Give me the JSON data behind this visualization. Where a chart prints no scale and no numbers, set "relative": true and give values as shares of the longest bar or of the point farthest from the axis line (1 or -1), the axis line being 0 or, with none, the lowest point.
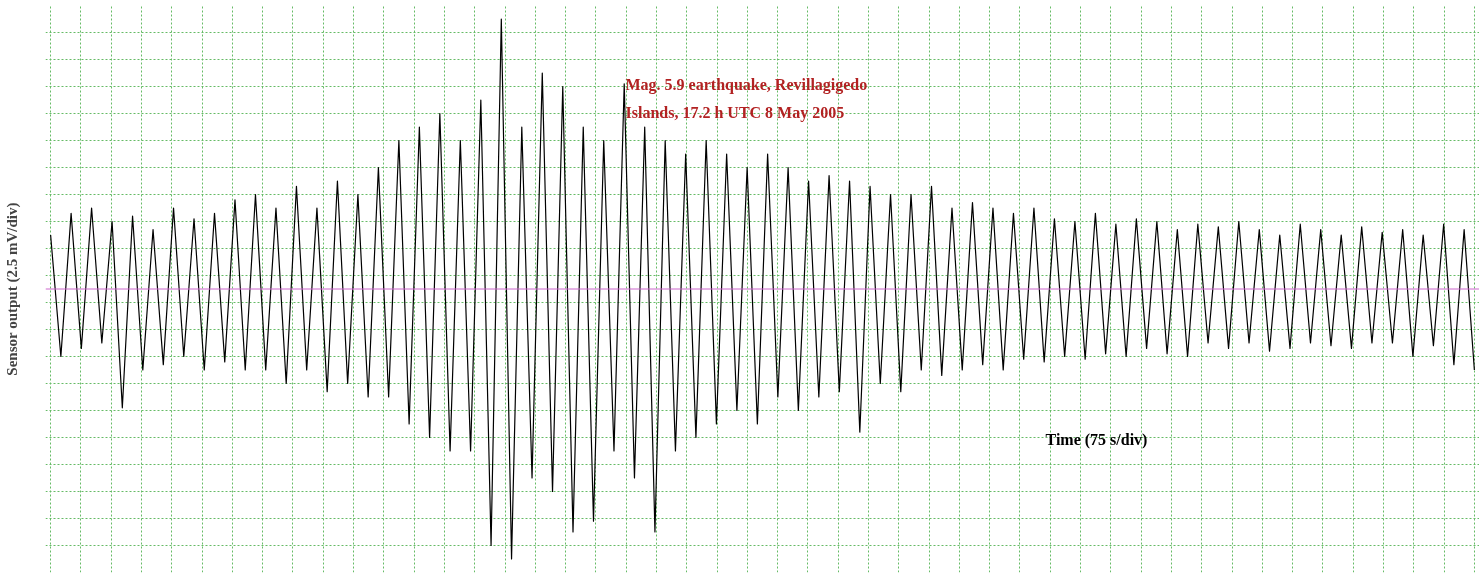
{
  "chart_data": {
    "type": "line",
    "relative": true,
    "ylabel": "Sensor output (2.5 mV/div)",
    "xlabel": "Time (75 s/div)",
    "annotations": [
      "Mag. 5.9 earthquake, Revillagigedo",
      "Islands, 17.2 h UTC   8 May 2005"
    ],
    "grid": true,
    "categories": [
      null,
      null,
      null,
      null,
      null,
      null,
      null,
      null,
      null,
      null,
      null,
      null,
      null,
      null,
      null,
      null,
      null,
      null,
      null,
      null,
      null,
      null,
      null,
      null,
      null,
      null,
      null,
      null,
      null,
      null,
      null,
      null,
      null,
      null,
      null,
      null,
      null,
      null,
      null,
      null,
      null,
      null,
      null,
      null,
      null,
      null,
      null,
      null,
      null,
      null,
      null,
      null,
      null,
      null,
      null,
      null,
      null,
      null,
      null,
      null,
      null,
      null,
      null,
      null,
      null,
      null,
      null,
      null,
      null,
      null,
      null,
      null,
      null,
      null,
      null,
      null,
      null,
      null,
      null,
      null,
      null,
      null,
      null,
      null,
      null,
      null,
      null,
      null,
      null,
      null,
      null,
      null,
      null,
      null,
      null,
      null,
      null,
      null,
      null,
      null,
      null,
      null,
      null,
      null,
      null,
      null,
      null,
      null,
      null,
      null,
      null,
      null,
      null,
      null,
      null,
      null,
      null,
      null,
      null,
      null,
      null,
      null,
      null,
      null,
      null,
      null,
      null,
      null,
      null,
      null,
      null,
      null,
      null,
      null,
      null,
      null,
      null,
      null,
      null,
      null
    ],
    "series": [
      {
        "color": "#000000",
        "values": [
          0.2,
          -0.25,
          0.28,
          -0.22,
          0.3,
          -0.2,
          0.25,
          -0.44,
          0.27,
          -0.3,
          0.22,
          -0.28,
          0.3,
          -0.25,
          0.26,
          -0.3,
          0.28,
          -0.27,
          0.33,
          -0.3,
          0.35,
          -0.3,
          0.3,
          -0.35,
          0.38,
          -0.3,
          0.3,
          -0.38,
          0.4,
          -0.35,
          0.35,
          -0.4,
          0.45,
          -0.4,
          0.55,
          -0.5,
          0.6,
          -0.55,
          0.65,
          -0.6,
          0.55,
          -0.6,
          0.7,
          -0.95,
          1,
          -1,
          0.6,
          -0.7,
          0.8,
          -0.75,
          0.75,
          -0.9,
          0.6,
          -0.86,
          0.55,
          -0.6,
          0.76,
          -0.7,
          0.6,
          -0.9,
          0.55,
          -0.6,
          0.5,
          -0.55,
          0.55,
          -0.5,
          0.5,
          -0.45,
          0.45,
          -0.5,
          0.5,
          -0.4,
          0.45,
          -0.45,
          0.4,
          -0.4,
          0.42,
          -0.38,
          0.4,
          -0.53,
          0.38,
          -0.35,
          0.35,
          -0.38,
          0.35,
          -0.3,
          0.38,
          -0.32,
          0.3,
          -0.3,
          0.32,
          -0.28,
          0.3,
          -0.3,
          0.28,
          -0.26,
          0.3,
          -0.27,
          0.26,
          -0.25,
          0.25,
          -0.26,
          0.28,
          -0.24,
          0.24,
          -0.25,
          0.26,
          -0.22,
          0.25,
          -0.24,
          0.22,
          -0.25,
          0.24,
          -0.2,
          0.23,
          -0.22,
          0.25,
          -0.2,
          0.22,
          -0.23,
          0.2,
          -0.22,
          0.24,
          -0.2,
          0.22,
          -0.21,
          0.2,
          -0.22,
          0.23,
          -0.2,
          0.21,
          -0.2,
          0.22,
          -0.25,
          0.2,
          -0.21,
          0.24,
          -0.28,
          0.22,
          -0.3
        ]
      }
    ],
    "ref_lines": [
      {
        "axis": "y",
        "value": 0,
        "color": "#cc66cc"
      }
    ]
  }
}
